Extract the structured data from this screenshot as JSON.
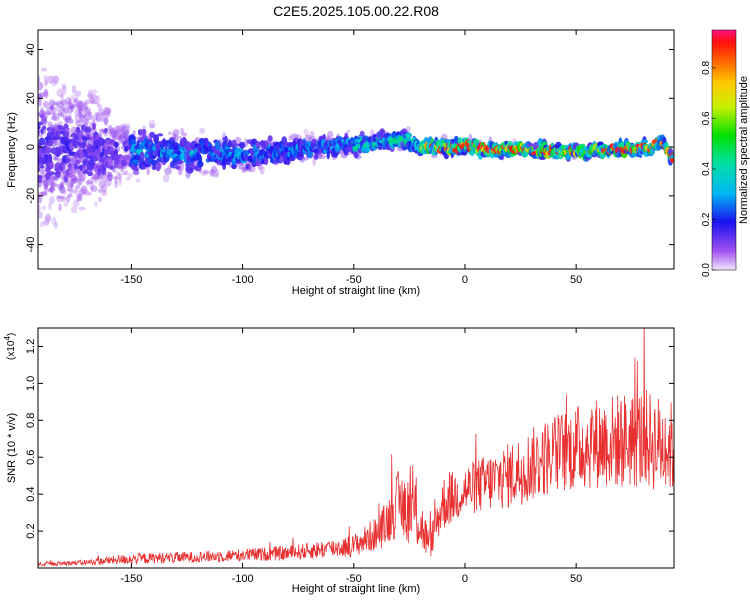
{
  "title": "C2E5.2025.105.00.22.R08",
  "chart_data": [
    {
      "type": "heatmap",
      "xlabel": "Height of straight line (km)",
      "ylabel": "Frequency (Hz)",
      "xlim": [
        -192,
        94
      ],
      "ylim": [
        -50,
        48
      ],
      "xticks": [
        -150,
        -100,
        -50,
        0,
        50
      ],
      "yticks": [
        -40,
        -20,
        0,
        20,
        40
      ],
      "colorbar": {
        "label": "Normalized spectral amplitude",
        "range": [
          0,
          0.95
        ],
        "ticks": [
          0.0,
          0.2,
          0.4,
          0.6,
          0.8
        ]
      },
      "description_points": {
        "ridge_center_hz": [
          {
            "x": -190,
            "y": 0
          },
          {
            "x": -150,
            "y": -2
          },
          {
            "x": -100,
            "y": -3
          },
          {
            "x": -60,
            "y": 0
          },
          {
            "x": -25,
            "y": 3
          },
          {
            "x": -20,
            "y": 0
          },
          {
            "x": 0,
            "y": 0
          },
          {
            "x": 50,
            "y": -2
          },
          {
            "x": 85,
            "y": 0
          },
          {
            "x": 88,
            "y": 3
          },
          {
            "x": 94,
            "y": -5
          }
        ],
        "ridge_halfwidth_hz": [
          {
            "x": -190,
            "y": 45
          },
          {
            "x": -165,
            "y": 30
          },
          {
            "x": -150,
            "y": 14
          },
          {
            "x": -100,
            "y": 9
          },
          {
            "x": -50,
            "y": 6
          },
          {
            "x": -20,
            "y": 4
          },
          {
            "x": 94,
            "y": 3
          }
        ]
      }
    },
    {
      "type": "line",
      "xlabel": "Height of straight line (km)",
      "ylabel": "SNR (10 * v/v)",
      "y_scale_label": "(x10",
      "y_scale_exp": "4",
      "y_scale_close": ")",
      "xlim": [
        -192,
        94
      ],
      "ylim": [
        0,
        1.3
      ],
      "xticks": [
        -150,
        -100,
        -50,
        0,
        50
      ],
      "yticks": [
        0.2,
        0.4,
        0.6,
        0.8,
        1.0,
        1.2
      ],
      "series": [
        {
          "name": "SNR",
          "color": "#e83030",
          "envelope": [
            {
              "x": -192,
              "mean": 0.02,
              "spread": 0.01
            },
            {
              "x": -170,
              "mean": 0.03,
              "spread": 0.015
            },
            {
              "x": -150,
              "mean": 0.05,
              "spread": 0.03
            },
            {
              "x": -120,
              "mean": 0.06,
              "spread": 0.03
            },
            {
              "x": -80,
              "mean": 0.08,
              "spread": 0.04
            },
            {
              "x": -50,
              "mean": 0.12,
              "spread": 0.06
            },
            {
              "x": -38,
              "mean": 0.2,
              "spread": 0.1
            },
            {
              "x": -30,
              "mean": 0.35,
              "spread": 0.18
            },
            {
              "x": -22,
              "mean": 0.3,
              "spread": 0.2
            },
            {
              "x": -16,
              "mean": 0.12,
              "spread": 0.08
            },
            {
              "x": -10,
              "mean": 0.35,
              "spread": 0.15
            },
            {
              "x": 0,
              "mean": 0.42,
              "spread": 0.14
            },
            {
              "x": 20,
              "mean": 0.5,
              "spread": 0.18
            },
            {
              "x": 40,
              "mean": 0.62,
              "spread": 0.22
            },
            {
              "x": 60,
              "mean": 0.68,
              "spread": 0.25
            },
            {
              "x": 80,
              "mean": 0.7,
              "spread": 0.28
            },
            {
              "x": 94,
              "mean": 0.65,
              "spread": 0.25
            }
          ]
        }
      ]
    }
  ]
}
